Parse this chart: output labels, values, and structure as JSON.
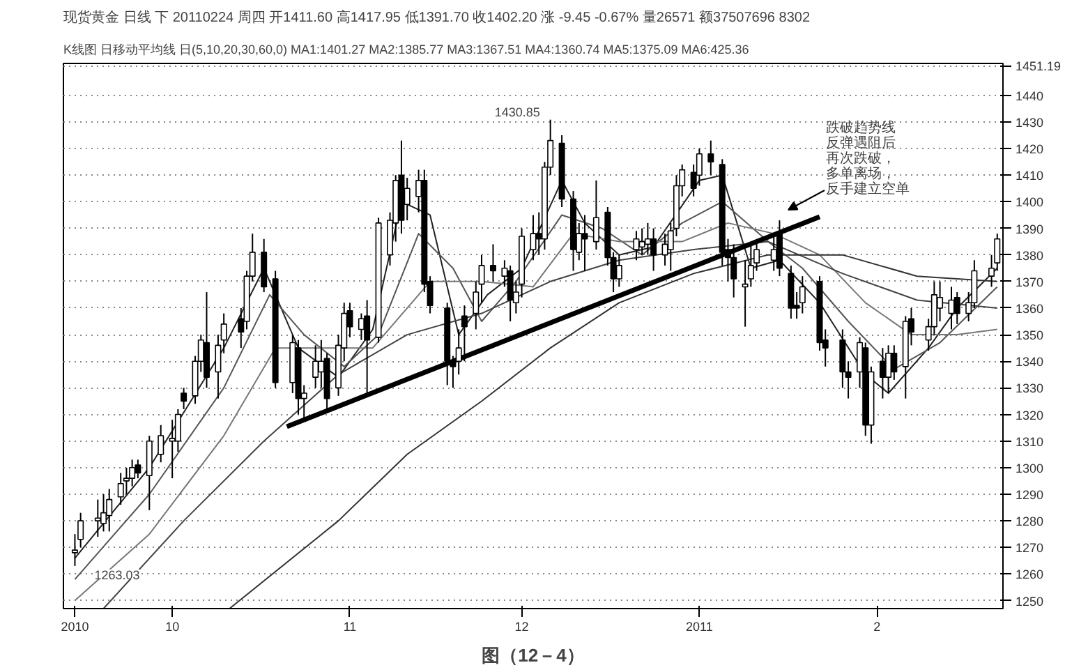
{
  "chart_data": {
    "type": "candlestick",
    "title": "现货黄金 日线 下 20110224 周四 开1411.60 高1417.95 低1391.70 收1402.20 涨 -9.45 -0.67% 量26571 额37507696 8302",
    "subtitle": "K线图 日移动平均线 日(5,10,20,30,60,0) MA1:1401.27 MA2:1385.77 MA3:1367.51 MA4:1360.74 MA5:1375.09 MA6:425.36",
    "x": [
      "2010-09-14",
      "2010-09-15",
      "2010-09-18",
      "2010-09-19",
      "2010-09-20",
      "2010-09-22",
      "2010-09-23",
      "2010-09-24",
      "2010-09-25",
      "2010-09-27",
      "2010-09-29",
      "2010-10-01",
      "2010-10-02",
      "2010-10-03",
      "2010-10-05",
      "2010-10-06",
      "2010-10-07",
      "2010-10-09",
      "2010-10-10",
      "2010-10-13",
      "2010-10-14",
      "2010-10-15",
      "2010-10-17",
      "2010-10-19",
      "2010-10-22",
      "2010-10-23",
      "2010-10-24",
      "2010-10-26",
      "2010-10-27",
      "2010-10-28",
      "2010-10-30",
      "2010-10-31",
      "2010-11-01",
      "2010-11-03",
      "2010-11-04",
      "2010-11-06",
      "2010-11-08",
      "2010-11-09",
      "2010-11-10",
      "2010-11-11",
      "2010-11-13",
      "2010-11-14",
      "2010-11-15",
      "2010-11-18",
      "2010-11-19",
      "2010-11-20",
      "2010-11-21",
      "2010-11-23",
      "2010-11-24",
      "2010-11-26",
      "2010-11-28",
      "2010-11-29",
      "2010-11-30",
      "2010-12-01",
      "2010-12-03",
      "2010-12-04",
      "2010-12-05",
      "2010-12-06",
      "2010-12-08",
      "2010-12-10",
      "2010-12-11",
      "2010-12-12",
      "2010-12-14",
      "2010-12-16",
      "2010-12-17",
      "2010-12-18",
      "2010-12-21",
      "2010-12-22",
      "2010-12-23",
      "2010-12-24",
      "2010-12-26",
      "2010-12-27",
      "2010-12-28",
      "2010-12-29",
      "2010-12-31",
      "2011-01-01",
      "2011-01-03",
      "2011-01-05",
      "2011-01-06",
      "2011-01-07",
      "2011-01-09",
      "2011-01-10",
      "2011-01-11",
      "2011-01-14",
      "2011-01-15",
      "2011-01-17",
      "2011-01-18",
      "2011-01-19",
      "2011-01-22",
      "2011-01-23",
      "2011-01-26",
      "2011-01-27",
      "2011-01-29",
      "2011-01-30",
      "2011-01-31",
      "2011-02-02",
      "2011-02-03",
      "2011-02-04",
      "2011-02-06",
      "2011-02-07",
      "2011-02-10",
      "2011-02-11",
      "2011-02-12",
      "2011-02-14",
      "2011-02-15",
      "2011-02-17",
      "2011-02-18",
      "2011-02-21",
      "2011-02-22"
    ],
    "ohlc": [
      [
        1268,
        1275,
        1263.03,
        1269
      ],
      [
        1273,
        1283,
        1270,
        1280
      ],
      [
        1280,
        1288,
        1274,
        1281
      ],
      [
        1279,
        1290,
        1276,
        1283
      ],
      [
        1282,
        1292,
        1276,
        1288
      ],
      [
        1289,
        1298,
        1286,
        1294
      ],
      [
        1295,
        1300,
        1290,
        1296
      ],
      [
        1296,
        1303,
        1293,
        1300
      ],
      [
        1301,
        1303,
        1296,
        1298
      ],
      [
        1297,
        1312,
        1284,
        1310
      ],
      [
        1305,
        1316,
        1302,
        1312
      ],
      [
        1310,
        1318,
        1296,
        1311
      ],
      [
        1310,
        1322,
        1306,
        1320
      ],
      [
        1328,
        1330,
        1322,
        1325
      ],
      [
        1327,
        1342,
        1324,
        1340
      ],
      [
        1340,
        1350,
        1336,
        1348
      ],
      [
        1347,
        1366,
        1330,
        1334
      ],
      [
        1336,
        1350,
        1326,
        1346
      ],
      [
        1348,
        1358,
        1343,
        1354
      ],
      [
        1356,
        1360,
        1345,
        1351
      ],
      [
        1355,
        1374,
        1352,
        1372
      ],
      [
        1372,
        1388,
        1370,
        1381
      ],
      [
        1381,
        1386,
        1366,
        1368
      ],
      [
        1371,
        1374,
        1330,
        1332
      ],
      [
        1332,
        1350,
        1328,
        1347
      ],
      [
        1345,
        1348,
        1320,
        1326
      ],
      [
        1326,
        1331,
        1318,
        1328
      ],
      [
        1334,
        1346,
        1330,
        1340
      ],
      [
        1336,
        1348,
        1330,
        1340
      ],
      [
        1341,
        1343,
        1322,
        1326
      ],
      [
        1330,
        1350,
        1327,
        1346
      ],
      [
        1345,
        1362,
        1340,
        1358
      ],
      [
        1359,
        1362,
        1349,
        1353
      ],
      [
        1352,
        1358,
        1348,
        1356
      ],
      [
        1357,
        1363,
        1327,
        1348
      ],
      [
        1349,
        1394,
        1347,
        1392
      ],
      [
        1380,
        1396,
        1376,
        1393
      ],
      [
        1392,
        1410,
        1385,
        1408
      ],
      [
        1410,
        1423,
        1388,
        1393
      ],
      [
        1399,
        1409,
        1393,
        1405
      ],
      [
        1402,
        1412,
        1396,
        1408
      ],
      [
        1408,
        1412,
        1366,
        1369
      ],
      [
        1370,
        1372,
        1358,
        1361
      ],
      [
        1360,
        1362,
        1331,
        1340
      ],
      [
        1340,
        1342,
        1330,
        1338
      ],
      [
        1340,
        1352,
        1335,
        1345
      ],
      [
        1357,
        1361,
        1340,
        1353
      ],
      [
        1358,
        1370,
        1352,
        1366
      ],
      [
        1369,
        1380,
        1362,
        1376
      ],
      [
        1376,
        1384,
        1370,
        1374
      ],
      [
        1372,
        1378,
        1368,
        1375
      ],
      [
        1374,
        1376,
        1355,
        1363
      ],
      [
        1362,
        1370,
        1358,
        1366
      ],
      [
        1369,
        1390,
        1364,
        1387
      ],
      [
        1382,
        1395,
        1378,
        1388
      ],
      [
        1388,
        1396,
        1380,
        1386
      ],
      [
        1386,
        1415,
        1382,
        1413
      ],
      [
        1413,
        1430.85,
        1410,
        1423
      ],
      [
        1422,
        1425,
        1398,
        1401
      ],
      [
        1401,
        1404,
        1374,
        1382
      ],
      [
        1381,
        1392,
        1378,
        1388
      ],
      [
        1388,
        1395,
        1374,
        1386
      ],
      [
        1385,
        1408,
        1382,
        1394
      ],
      [
        1396,
        1398,
        1376,
        1379
      ],
      [
        1379,
        1381,
        1366,
        1371
      ],
      [
        1371,
        1380,
        1368,
        1376
      ],
      [
        1382,
        1389,
        1378,
        1386
      ],
      [
        1383,
        1390,
        1380,
        1385
      ],
      [
        1384,
        1392,
        1380,
        1386
      ],
      [
        1386,
        1390,
        1374,
        1380
      ],
      [
        1380,
        1388,
        1376,
        1384
      ],
      [
        1382,
        1392,
        1374,
        1389
      ],
      [
        1390,
        1410,
        1387,
        1406
      ],
      [
        1406,
        1414,
        1402,
        1412
      ],
      [
        1411,
        1414,
        1402,
        1405
      ],
      [
        1410,
        1420,
        1406,
        1418
      ],
      [
        1418,
        1423,
        1410,
        1415
      ],
      [
        1414,
        1416,
        1376,
        1381
      ],
      [
        1382,
        1386,
        1370,
        1379
      ],
      [
        1379,
        1384,
        1364,
        1371
      ],
      [
        1368,
        1378,
        1353,
        1369
      ],
      [
        1371,
        1384,
        1368,
        1376
      ],
      [
        1377,
        1386,
        1374,
        1382
      ],
      [
        1378,
        1388,
        1374,
        1382
      ],
      [
        1388,
        1393,
        1372,
        1375
      ],
      [
        1373,
        1376,
        1356,
        1360
      ],
      [
        1361,
        1366,
        1356,
        1360
      ],
      [
        1362,
        1372,
        1358,
        1368
      ],
      [
        1370,
        1372,
        1344,
        1347
      ],
      [
        1348,
        1352,
        1338,
        1345
      ],
      [
        1348,
        1352,
        1330,
        1336
      ],
      [
        1336,
        1340,
        1326,
        1334
      ],
      [
        1336,
        1349,
        1330,
        1347
      ],
      [
        1345,
        1347,
        1312,
        1316
      ],
      [
        1316,
        1338,
        1309,
        1336
      ],
      [
        1340,
        1345,
        1326,
        1334
      ],
      [
        1334,
        1346,
        1328,
        1343
      ],
      [
        1343,
        1346,
        1333,
        1336
      ],
      [
        1338,
        1357,
        1326,
        1355
      ],
      [
        1356,
        1360,
        1346,
        1351
      ],
      [
        1348,
        1356,
        1344,
        1353
      ],
      [
        1353,
        1370,
        1350,
        1365
      ],
      [
        1360,
        1370,
        1355,
        1364
      ],
      [
        1358,
        1368,
        1352,
        1363
      ],
      [
        1364,
        1366,
        1354,
        1358
      ],
      [
        1358,
        1366,
        1355,
        1362
      ],
      [
        1362,
        1378,
        1360,
        1374
      ],
      [
        1372,
        1380,
        1368,
        1375
      ],
      [
        1377,
        1388,
        1374,
        1386
      ]
    ],
    "series": [
      {
        "type": "line",
        "color": "#222222",
        "x": [
          "2010-09-14",
          "2010-09-27",
          "2010-10-10",
          "2010-10-17",
          "2010-10-23",
          "2010-10-30",
          "2010-11-05",
          "2010-11-10",
          "2010-11-15",
          "2010-11-20",
          "2010-11-25",
          "2010-12-01",
          "2010-12-08",
          "2010-12-12",
          "2010-12-18",
          "2010-12-24",
          "2011-01-01",
          "2011-01-05",
          "2011-01-10",
          "2011-01-15",
          "2011-01-22",
          "2011-01-30",
          "2011-02-03",
          "2011-02-10",
          "2011-02-15",
          "2011-02-22"
        ],
        "values": [
          1266,
          1300,
          1345,
          1375,
          1345,
          1334,
          1352,
          1400,
          1395,
          1350,
          1365,
          1375,
          1408,
          1392,
          1380,
          1383,
          1408,
          1410,
          1375,
          1378,
          1362,
          1335,
          1328,
          1345,
          1360,
          1375
        ]
      },
      {
        "type": "line",
        "color": "#555555",
        "x": [
          "2010-09-14",
          "2010-09-27",
          "2010-10-10",
          "2010-10-18",
          "2010-10-24",
          "2010-10-31",
          "2010-11-06",
          "2010-11-13",
          "2010-11-19",
          "2010-11-24",
          "2010-11-30",
          "2010-12-08",
          "2010-12-15",
          "2010-12-22",
          "2010-12-29",
          "2011-01-05",
          "2011-01-13",
          "2011-01-19",
          "2011-01-27",
          "2011-02-04",
          "2011-02-12",
          "2011-02-22"
        ],
        "values": [
          1258,
          1290,
          1330,
          1365,
          1350,
          1338,
          1350,
          1388,
          1375,
          1355,
          1370,
          1395,
          1390,
          1380,
          1392,
          1400,
          1385,
          1375,
          1355,
          1337,
          1347,
          1368
        ]
      },
      {
        "type": "line",
        "color": "#777777",
        "x": [
          "2010-09-14",
          "2010-09-27",
          "2010-10-10",
          "2010-10-19",
          "2010-10-27",
          "2010-11-05",
          "2010-11-15",
          "2010-11-24",
          "2010-12-03",
          "2010-12-10",
          "2010-12-18",
          "2010-12-29",
          "2011-01-06",
          "2011-01-14",
          "2011-01-22",
          "2011-01-30",
          "2011-02-07",
          "2011-02-15",
          "2011-02-22"
        ],
        "values": [
          1250,
          1275,
          1312,
          1345,
          1345,
          1345,
          1370,
          1370,
          1368,
          1388,
          1385,
          1385,
          1392,
          1388,
          1380,
          1362,
          1350,
          1350,
          1352
        ]
      },
      {
        "type": "line",
        "color": "#444444",
        "x": [
          "2010-09-19",
          "2010-10-03",
          "2010-10-17",
          "2010-10-30",
          "2010-11-11",
          "2010-11-24",
          "2010-12-06",
          "2010-12-18",
          "2010-12-31",
          "2011-01-13",
          "2011-01-26",
          "2011-02-08",
          "2011-02-22"
        ],
        "values": [
          1247,
          1280,
          1310,
          1335,
          1350,
          1358,
          1370,
          1378,
          1382,
          1385,
          1373,
          1363,
          1360
        ]
      },
      {
        "type": "line",
        "color": "#333333",
        "x": [
          "2010-10-11",
          "2010-10-30",
          "2010-11-11",
          "2010-11-24",
          "2010-12-06",
          "2010-12-18",
          "2010-12-31",
          "2011-01-13",
          "2011-01-26",
          "2011-02-08",
          "2011-02-22"
        ],
        "values": [
          1247,
          1280,
          1305,
          1325,
          1345,
          1362,
          1373,
          1380,
          1380,
          1372,
          1370
        ]
      },
      {
        "type": "line",
        "color": "#000000",
        "x": [
          "2010-10-21",
          "2011-01-22"
        ],
        "values": [
          1315.4,
          1394.3
        ]
      }
    ],
    "xlim": [
      "2010-09-12",
      "2011-02-23"
    ],
    "xticks": [
      {
        "value": "2010-09-14",
        "label": "2010"
      },
      {
        "value": "2010-10-01",
        "label": "10"
      },
      {
        "value": "2010-11-01",
        "label": "11"
      },
      {
        "value": "2010-12-01",
        "label": "12"
      },
      {
        "value": "2011-01-01",
        "label": "2011"
      },
      {
        "value": "2011-02-01",
        "label": "2"
      }
    ],
    "ylim": [
      1247,
      1452
    ],
    "yticks": [
      1250,
      1260,
      1270,
      1280,
      1290,
      1300,
      1310,
      1320,
      1330,
      1340,
      1350,
      1360,
      1370,
      1380,
      1390,
      1400,
      1410,
      1420,
      1430,
      1440,
      {
        "value": 1451.19,
        "label": "1451.19"
      }
    ],
    "grid": "y",
    "annotations": [
      {
        "text": "1263.03",
        "x": "2010-09-14",
        "y": 1263.03
      },
      {
        "text": "1430.85",
        "x": "2010-12-06",
        "y": 1430.85
      },
      "跌破趋势线反弹遇阻后再次跌破，多单离场，反手建立空单",
      "图（12－4）"
    ]
  }
}
